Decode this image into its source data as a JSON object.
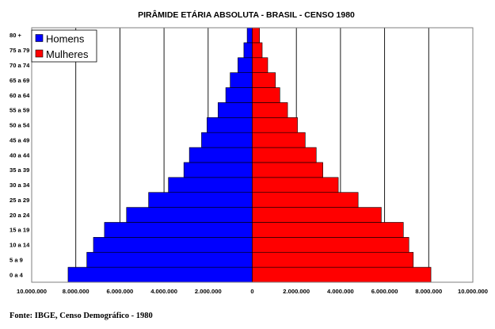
{
  "chart_data": {
    "type": "bar",
    "orientation": "horizontal",
    "title": "PIRÂMIDE ETÁRIA ABSOLUTA - BRASIL - CENSO 1980",
    "categories": [
      "0 a 4",
      "5 a 9",
      "10 a 14",
      "15 a 19",
      "20 a 24",
      "25 a 29",
      "30 a 34",
      "35 a 39",
      "40 a 44",
      "45 a 49",
      "50 a 54",
      "55 a 59",
      "60 a 64",
      "65 a 69",
      "70 a 74",
      "75 a 79",
      "80 +"
    ],
    "series": [
      {
        "name": "Homens",
        "color": "#0000ff",
        "values": [
          8350000,
          7500000,
          7200000,
          6700000,
          5700000,
          4700000,
          3800000,
          3100000,
          2850000,
          2300000,
          2050000,
          1550000,
          1200000,
          1000000,
          650000,
          380000,
          230000
        ]
      },
      {
        "name": "Mulheres",
        "color": "#ff0000",
        "values": [
          8100000,
          7300000,
          7100000,
          6850000,
          5850000,
          4800000,
          3900000,
          3200000,
          2900000,
          2400000,
          2050000,
          1600000,
          1250000,
          1050000,
          700000,
          450000,
          330000
        ]
      }
    ],
    "xlim": [
      -10000000,
      10000000
    ],
    "x_ticks": [
      -10000000,
      -8000000,
      -6000000,
      -4000000,
      -2000000,
      0,
      2000000,
      4000000,
      6000000,
      8000000,
      10000000
    ],
    "x_tick_labels": [
      "10.000.000",
      "8.000.000",
      "6.000.000",
      "4.000.000",
      "2.000.000",
      "0",
      "2.000.000",
      "4.000.000",
      "6.000.000",
      "8.000.000",
      "10.000.000"
    ],
    "xlabel": "",
    "ylabel": "",
    "grid": "vertical",
    "legend_position": "top-left"
  },
  "source": "Fonte: IBGE, Censo Demográfico - 1980"
}
